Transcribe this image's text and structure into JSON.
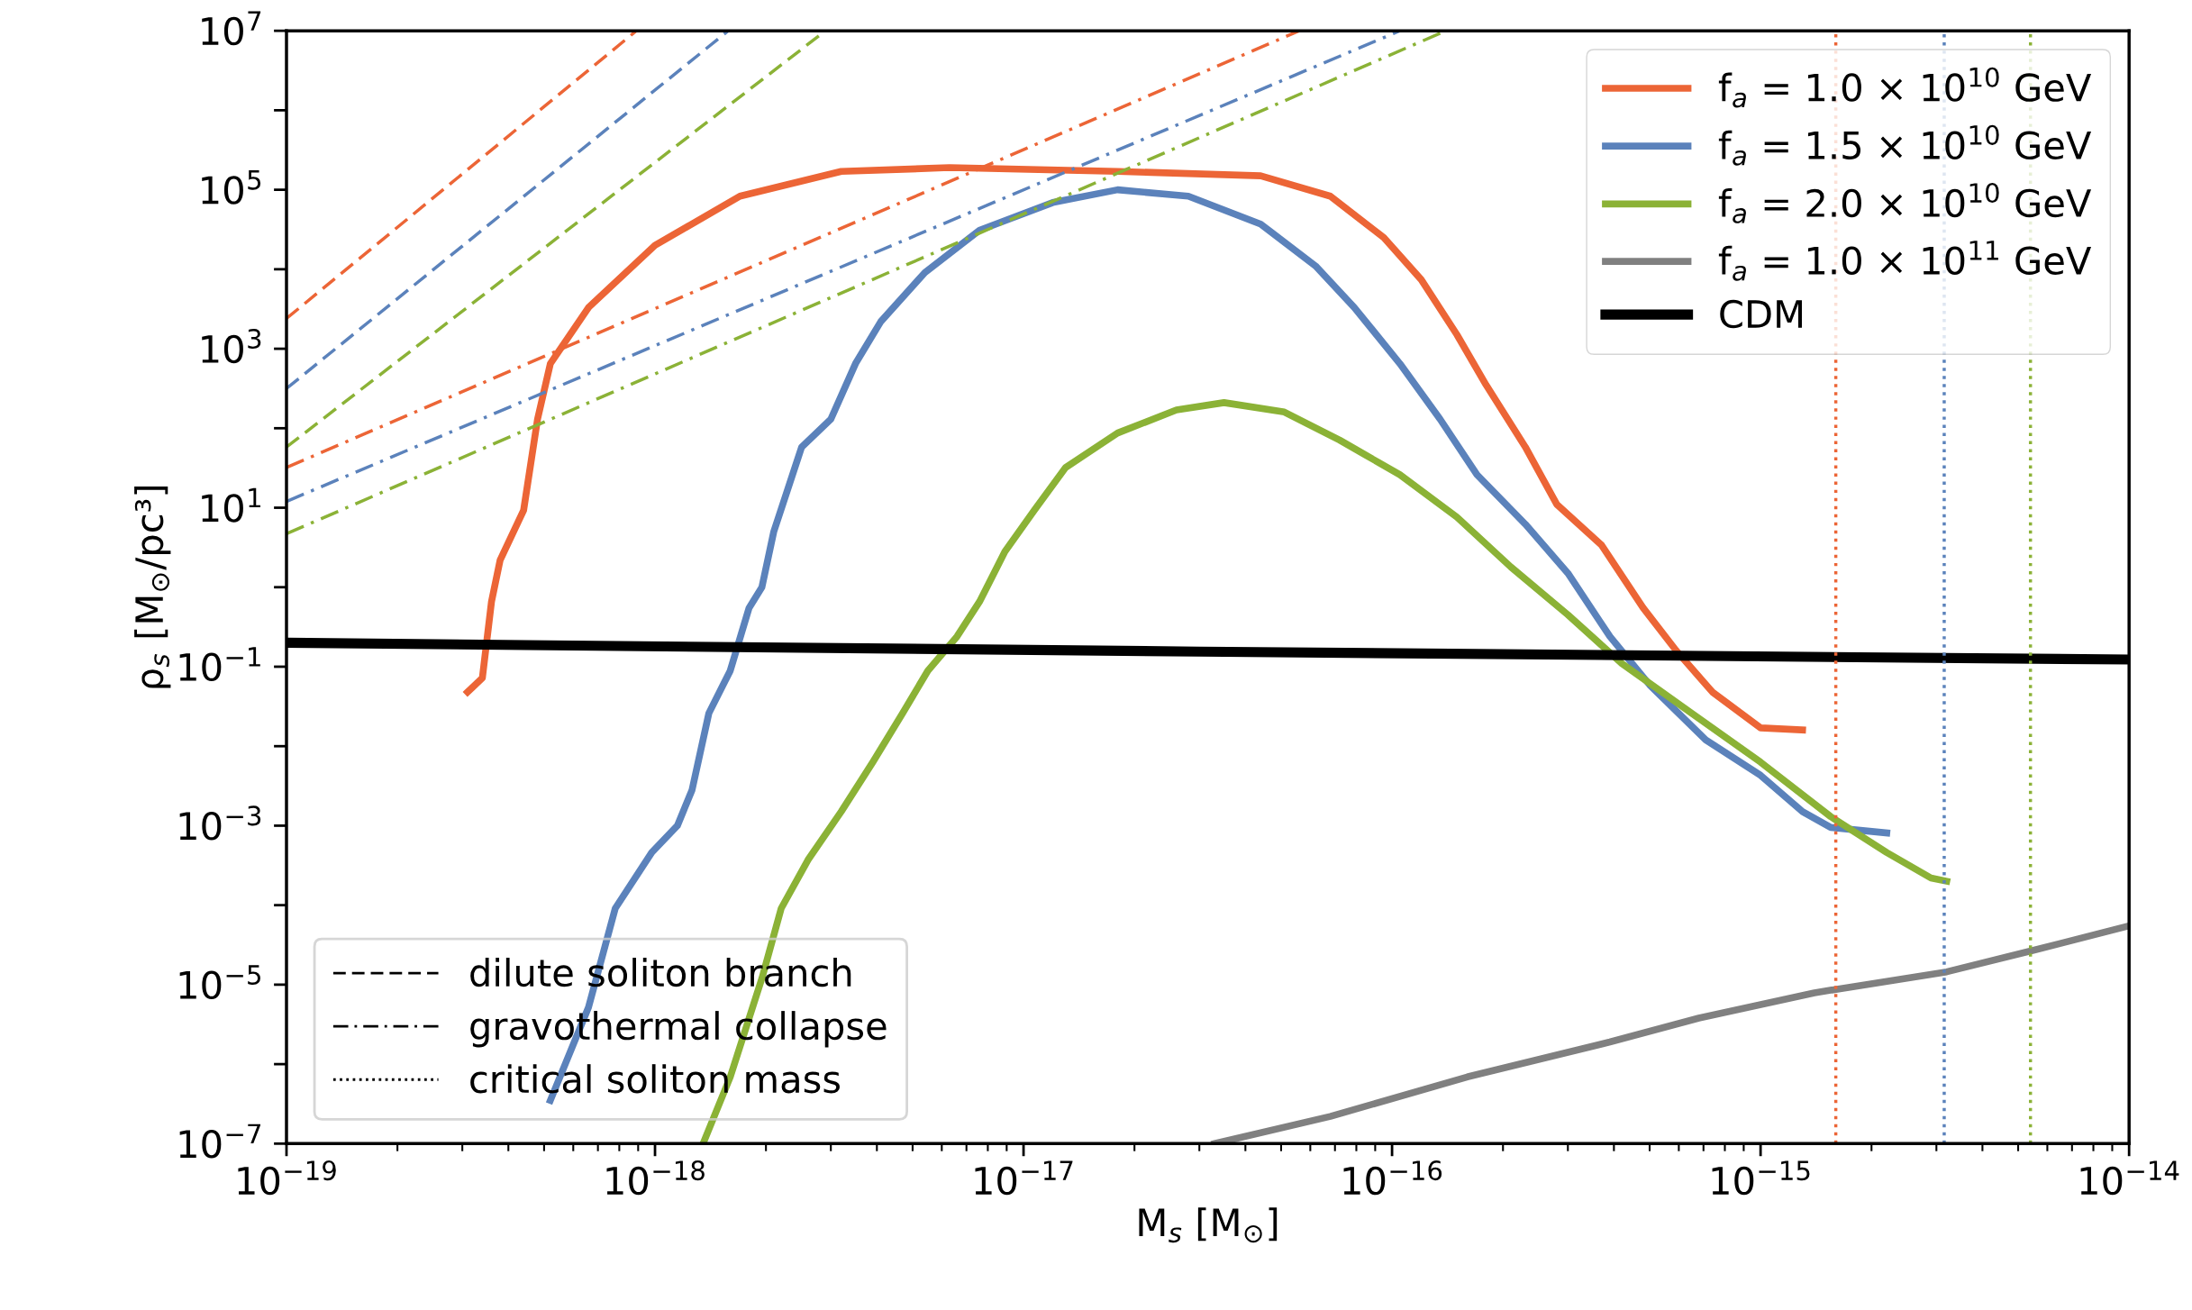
{
  "chart_data": {
    "type": "line",
    "xlabel": "M$_{s}$ [M$_{⊙}$]",
    "ylabel": "ρ$_{s}$ [M$_{⊙}$/pc³]",
    "log": "xy",
    "legend": "top right",
    "grid": false,
    "xlim": [
      1e-19,
      1e-14
    ],
    "xticks": [
      {
        "value": 1e-19,
        "label": "10$^{−19}$"
      },
      {
        "value": 1e-18,
        "label": "10$^{−18}$"
      },
      {
        "value": 1e-17,
        "label": "10$^{−17}$"
      },
      {
        "value": 1e-16,
        "label": "10$^{−16}$"
      },
      {
        "value": 1e-15,
        "label": "10$^{−15}$"
      },
      {
        "value": 1e-14,
        "label": "10$^{−14}$"
      }
    ],
    "ylim": [
      1e-07,
      10000000.0
    ],
    "yticks": [
      {
        "value": 1e-07,
        "label": "10$^{−7}$"
      },
      {
        "value": 1e-06,
        "label": null
      },
      {
        "value": 1e-05,
        "label": "10$^{−5}$"
      },
      {
        "value": 0.0001,
        "label": null
      },
      {
        "value": 0.001,
        "label": "10$^{−3}$"
      },
      {
        "value": 0.01,
        "label": null
      },
      {
        "value": 0.1,
        "label": "10$^{−1}$"
      },
      {
        "value": 1,
        "label": null
      },
      {
        "value": 10,
        "label": "10$^{1}$"
      },
      {
        "value": 100,
        "label": null
      },
      {
        "value": 1000,
        "label": "10$^{3}$"
      },
      {
        "value": 10000,
        "label": null
      },
      {
        "value": 100000,
        "label": "10$^{5}$"
      },
      {
        "value": 1000000,
        "label": null
      },
      {
        "value": 10000000,
        "label": "10$^{7}$"
      }
    ],
    "series": [
      {
        "name": "f$_{a}$ = 1.0 × 10$^{10}$ GeV",
        "color": "#ec6536",
        "line_style": "solid",
        "x": [
          3.1e-19,
          3.4e-19,
          3.6e-19,
          3.8e-19,
          4.4e-19,
          4.8e-19,
          5.2e-19,
          6.6e-19,
          1e-18,
          1.7e-18,
          3.2e-18,
          6.3e-18,
          1.8e-17,
          4.4e-17,
          6.8e-17,
          9.5e-17,
          1.2e-16,
          1.5e-16,
          1.8e-16,
          2.3e-16,
          2.8e-16,
          3.7e-16,
          4.8e-16,
          5.9e-16,
          7.4e-16,
          1e-15,
          1.3e-15
        ],
        "values": [
          0.048,
          0.072,
          0.66,
          2.2,
          9.3,
          130,
          650,
          3300,
          20000,
          83000,
          170000,
          190000,
          170000,
          150000,
          83000,
          25000,
          7400,
          1500,
          350,
          58,
          11,
          3.4,
          0.55,
          0.16,
          0.048,
          0.017,
          0.016
        ]
      },
      {
        "name": "f$_{a}$ = 1.5 × 10$^{10}$ GeV",
        "color": "#5b82bb",
        "line_style": "solid",
        "x": [
          5.2e-19,
          6.6e-19,
          7.8e-19,
          9.8e-19,
          1.15e-18,
          1.26e-18,
          1.4e-18,
          1.6e-18,
          1.8e-18,
          1.95e-18,
          2.1e-18,
          2.5e-18,
          3e-18,
          3.5e-18,
          4.1e-18,
          5.4e-18,
          7.6e-18,
          1.2e-17,
          1.8e-17,
          2.8e-17,
          4.4e-17,
          6.2e-17,
          7.9e-17,
          1.05e-16,
          1.35e-16,
          1.7e-16,
          2.3e-16,
          3e-16,
          3.9e-16,
          5e-16,
          7.1e-16,
          1e-15,
          1.3e-15,
          1.55e-15,
          2.2e-15
        ],
        "values": [
          3.5e-07,
          5.2e-06,
          9.1e-05,
          0.00046,
          0.001,
          0.0028,
          0.026,
          0.089,
          0.55,
          1.0,
          5.0,
          58,
          130,
          650,
          2200,
          9100,
          31000,
          69000,
          100000,
          83000,
          37000,
          11000,
          3300,
          650,
          130,
          26,
          6.2,
          1.5,
          0.24,
          0.059,
          0.012,
          0.0043,
          0.0015,
          0.00095,
          0.00081
        ]
      },
      {
        "name": "f$_{a}$ = 2.0 × 10$^{10}$ GeV",
        "color": "#8bb236",
        "line_style": "solid",
        "x": [
          1.35e-18,
          1.6e-18,
          1.95e-18,
          2.2e-18,
          2.6e-18,
          3.2e-18,
          3.9e-18,
          4.7e-18,
          5.5e-18,
          6.6e-18,
          7.6e-18,
          8.9e-18,
          1.07e-17,
          1.3e-17,
          1.8e-17,
          2.6e-17,
          3.5e-17,
          5.1e-17,
          7.2e-17,
          1.05e-16,
          1.5e-16,
          2.1e-16,
          3e-16,
          4.2e-16,
          6.5e-16,
          1e-15,
          1.55e-15,
          2.2e-15,
          2.9e-15,
          3.2e-15
        ],
        "values": [
          1e-07,
          6.9e-07,
          1.2e-05,
          9.1e-05,
          0.00037,
          0.0015,
          0.0063,
          0.026,
          0.089,
          0.24,
          0.66,
          2.8,
          9.3,
          32,
          87,
          170,
          210,
          160,
          71,
          26,
          7.6,
          1.8,
          0.45,
          0.11,
          0.026,
          0.0063,
          0.0013,
          0.00046,
          0.00022,
          0.0002
        ]
      },
      {
        "name": "f$_{a}$ = 1.0 × 10$^{11}$ GeV",
        "color": "#808080",
        "line_style": "solid",
        "x": [
          3.3e-17,
          6.8e-17,
          1.6e-16,
          3.9e-16,
          6.8e-16,
          1.4e-15,
          3.2e-15,
          5.5e-15,
          1e-14
        ],
        "values": [
          1e-07,
          2.2e-07,
          6.9e-07,
          1.9e-06,
          3.8e-06,
          7.9e-06,
          1.45e-05,
          2.7e-05,
          5.5e-05
        ]
      },
      {
        "name": "CDM",
        "color": "#000000",
        "line_style": "solid",
        "x": [
          1e-19,
          3e-17,
          1e-14
        ],
        "values": [
          0.2,
          0.155,
          0.123
        ]
      },
      {
        "color": "#ec6536",
        "line_style": "dashed",
        "x": [
          1e-19,
          8.9e-19
        ],
        "values": [
          2400,
          10000000.0
        ]
      },
      {
        "color": "#5b82bb",
        "line_style": "dashed",
        "x": [
          1e-19,
          1.58e-18
        ],
        "values": [
          316,
          10000000.0
        ]
      },
      {
        "color": "#8bb236",
        "line_style": "dashed",
        "x": [
          1e-19,
          2.9e-18
        ],
        "values": [
          58,
          10000000.0
        ]
      },
      {
        "color": "#ec6536",
        "line_style": "dashdot",
        "x": [
          1e-19,
          5.6e-17
        ],
        "values": [
          32,
          10000000.0
        ]
      },
      {
        "color": "#5b82bb",
        "line_style": "dashdot",
        "x": [
          1e-19,
          1.05e-16
        ],
        "values": [
          12,
          10000000.0
        ]
      },
      {
        "color": "#8bb236",
        "line_style": "dashdot",
        "x": [
          1e-19,
          1.4e-16
        ],
        "values": [
          4.7,
          10000000.0
        ]
      }
    ],
    "ref_lines": [
      {
        "axis": "x",
        "value": 1.6e-15,
        "color": "#ec6536",
        "line_style": "dotted"
      },
      {
        "axis": "x",
        "value": 3.15e-15,
        "color": "#5b82bb",
        "line_style": "dotted"
      },
      {
        "axis": "x",
        "value": 5.4e-15,
        "color": "#8bb236",
        "line_style": "dotted"
      }
    ],
    "annotations": [
      "dilute soliton branch",
      "gravothermal collapse",
      "critical soliton mass"
    ]
  }
}
